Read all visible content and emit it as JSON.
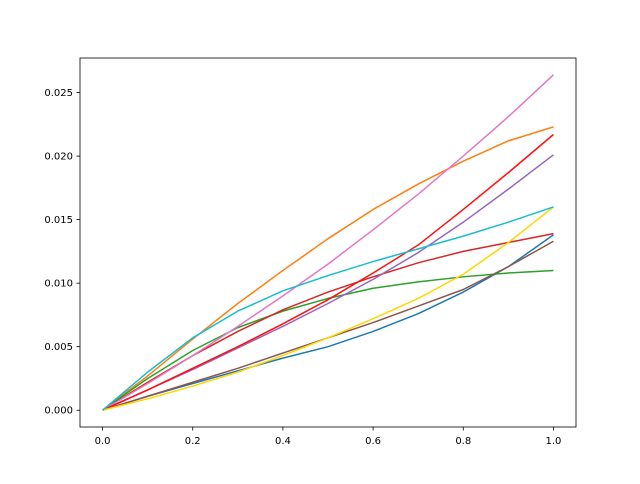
{
  "chart_data": {
    "type": "line",
    "x": [
      0,
      0.1,
      0.2,
      0.3,
      0.4,
      0.5,
      0.6,
      0.7,
      0.8,
      0.9,
      1.0
    ],
    "series": [
      {
        "color": "#1f77b4",
        "values": [
          0,
          0.0011,
          0.0021,
          0.0031,
          0.0041,
          0.005,
          0.0062,
          0.0076,
          0.0093,
          0.0113,
          0.0138
        ]
      },
      {
        "color": "#ff7f0e",
        "values": [
          0,
          0.0027,
          0.0056,
          0.0084,
          0.011,
          0.0135,
          0.0158,
          0.0178,
          0.0196,
          0.0212,
          0.0223
        ]
      },
      {
        "color": "#2ca02c",
        "values": [
          0,
          0.0025,
          0.0047,
          0.0065,
          0.0078,
          0.0088,
          0.0096,
          0.0101,
          0.0105,
          0.0108,
          0.011
        ]
      },
      {
        "color": "#d62728",
        "values": [
          0,
          0.0022,
          0.0043,
          0.0062,
          0.0079,
          0.0093,
          0.0105,
          0.0116,
          0.0125,
          0.0132,
          0.0139
        ]
      },
      {
        "color": "#9467bd",
        "values": [
          0,
          0.0016,
          0.0032,
          0.0049,
          0.0066,
          0.0084,
          0.0103,
          0.0124,
          0.0148,
          0.0174,
          0.0201
        ]
      },
      {
        "color": "#8c564b",
        "values": [
          0,
          0.0011,
          0.0022,
          0.0033,
          0.0045,
          0.0057,
          0.0069,
          0.0082,
          0.0095,
          0.0113,
          0.0133
        ]
      },
      {
        "color": "#e377c2",
        "values": [
          0,
          0.0021,
          0.0043,
          0.0066,
          0.009,
          0.0115,
          0.0142,
          0.017,
          0.02,
          0.0231,
          0.0264
        ]
      },
      {
        "color": "#ff1010",
        "values": [
          0,
          0.0016,
          0.0033,
          0.005,
          0.0068,
          0.0087,
          0.0108,
          0.013,
          0.0158,
          0.0187,
          0.0217
        ]
      },
      {
        "color": "#ffd700",
        "values": [
          0,
          0.0009,
          0.0019,
          0.003,
          0.0043,
          0.0057,
          0.0072,
          0.0088,
          0.0107,
          0.0132,
          0.016
        ]
      },
      {
        "color": "#17becf",
        "values": [
          0,
          0.003,
          0.0057,
          0.0078,
          0.0094,
          0.0106,
          0.0117,
          0.0127,
          0.0137,
          0.0148,
          0.016
        ]
      }
    ],
    "xlim": [
      -0.05,
      1.05
    ],
    "ylim": [
      -0.00132,
      0.02772
    ],
    "xticks": [
      {
        "value": 0,
        "label": "0.0"
      },
      {
        "value": 0.2,
        "label": "0.2"
      },
      {
        "value": 0.4,
        "label": "0.4"
      },
      {
        "value": 0.6,
        "label": "0.6"
      },
      {
        "value": 0.8,
        "label": "0.8"
      },
      {
        "value": 1.0,
        "label": "1.0"
      }
    ],
    "yticks": [
      {
        "value": 0,
        "label": "0.000"
      },
      {
        "value": 0.005,
        "label": "0.005"
      },
      {
        "value": 0.01,
        "label": "0.010"
      },
      {
        "value": 0.015,
        "label": "0.015"
      },
      {
        "value": 0.02,
        "label": "0.020"
      },
      {
        "value": 0.025,
        "label": "0.025"
      }
    ],
    "grid": false
  }
}
